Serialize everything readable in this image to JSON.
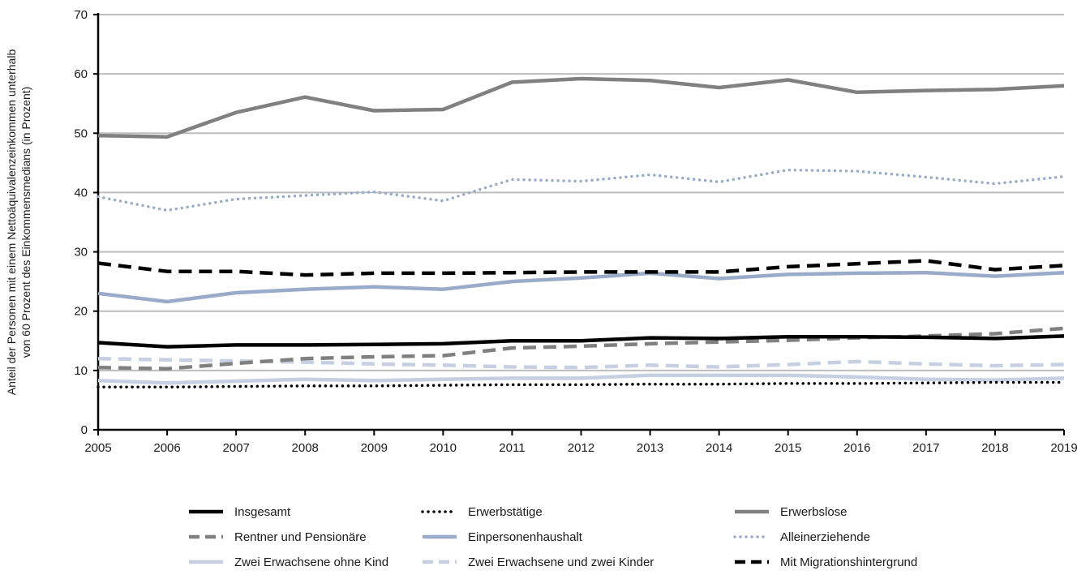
{
  "chart_data": {
    "type": "line",
    "title": "",
    "xlabel": "",
    "ylabel_lines": [
      "Anteil der Personen mit einem Nettoäquivalenzeinkommen unterhalb",
      "von 60 Prozent des Einkommensmedians (in Prozent)"
    ],
    "ylim": [
      0,
      70
    ],
    "yticks": [
      "0",
      "10",
      "20",
      "30",
      "40",
      "50",
      "60",
      "70"
    ],
    "x": [
      "2005",
      "2006",
      "2007",
      "2008",
      "2009",
      "2010",
      "2011",
      "2012",
      "2013",
      "2014",
      "2015",
      "2016",
      "2017",
      "2018",
      "2019"
    ],
    "grid": "horizontal",
    "legend_position": "bottom",
    "series": [
      {
        "name": "Insgesamt",
        "color": "#000000",
        "style": "solid",
        "values": [
          14.7,
          14.0,
          14.3,
          14.3,
          14.4,
          14.5,
          15.0,
          15.0,
          15.5,
          15.4,
          15.7,
          15.7,
          15.6,
          15.4,
          15.8
        ]
      },
      {
        "name": "Erwerbstätige",
        "color": "#000000",
        "style": "dotted",
        "values": [
          7.2,
          7.2,
          7.3,
          7.4,
          7.4,
          7.5,
          7.6,
          7.6,
          7.7,
          7.7,
          7.8,
          7.8,
          7.9,
          8.0,
          8.0
        ]
      },
      {
        "name": "Erwerbslose",
        "color": "#808080",
        "style": "solid",
        "values": [
          49.6,
          49.4,
          53.5,
          56.1,
          53.8,
          54.0,
          58.6,
          59.2,
          58.9,
          57.7,
          59.0,
          56.9,
          57.2,
          57.4,
          58.0
        ]
      },
      {
        "name": "Rentner und Pensionäre",
        "color": "#808080",
        "style": "dashed",
        "values": [
          10.5,
          10.3,
          11.2,
          12.0,
          12.3,
          12.5,
          13.8,
          14.1,
          14.5,
          14.8,
          15.1,
          15.5,
          15.8,
          16.2,
          17.1
        ]
      },
      {
        "name": "Einpersonenhaushalt",
        "color": "#9aabc9",
        "style": "solid",
        "values": [
          23.0,
          21.6,
          23.1,
          23.7,
          24.1,
          23.7,
          25.0,
          25.6,
          26.4,
          25.5,
          26.2,
          26.4,
          26.5,
          25.9,
          26.5
        ]
      },
      {
        "name": "Alleinerziehende",
        "color": "#9aabc9",
        "style": "dotted",
        "values": [
          39.3,
          37.0,
          38.9,
          39.5,
          40.1,
          38.6,
          42.2,
          41.9,
          43.0,
          41.8,
          43.8,
          43.6,
          42.6,
          41.5,
          42.7
        ]
      },
      {
        "name": "Zwei Erwachsene ohne Kind",
        "color": "#c6d0e2",
        "style": "solid",
        "values": [
          8.3,
          7.9,
          8.2,
          8.5,
          8.3,
          8.5,
          8.7,
          8.7,
          9.2,
          9.2,
          9.2,
          8.9,
          8.5,
          8.4,
          8.7
        ]
      },
      {
        "name": "Zwei Erwachsene und zwei Kinder",
        "color": "#c6d0e2",
        "style": "dashed",
        "values": [
          12.0,
          11.8,
          11.6,
          11.4,
          11.1,
          10.9,
          10.6,
          10.5,
          10.9,
          10.6,
          11.0,
          11.5,
          11.1,
          10.8,
          11.0
        ]
      },
      {
        "name": "Mit Migrationshintergrund",
        "color": "#000000",
        "style": "dashed",
        "values": [
          28.1,
          26.7,
          26.7,
          26.1,
          26.4,
          26.4,
          26.5,
          26.6,
          26.6,
          26.6,
          27.5,
          28.0,
          28.5,
          27.0,
          27.7
        ]
      }
    ]
  }
}
